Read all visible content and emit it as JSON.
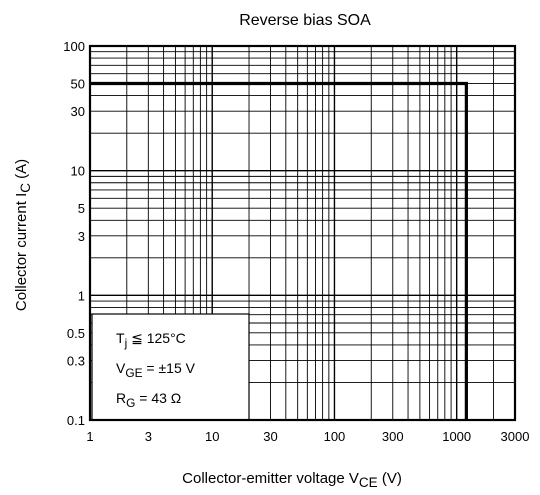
{
  "chart_data": {
    "type": "line",
    "title": "Reverse bias SOA",
    "xlabel": {
      "main": "Collector-emitter voltage",
      "sym": "V",
      "sub": "CE",
      "unit": "(V)"
    },
    "ylabel": {
      "main": "Collector current",
      "sym": "I",
      "sub": "C",
      "unit": "(A)"
    },
    "x_scale": "log",
    "y_scale": "log",
    "xlim": [
      1,
      3000
    ],
    "ylim": [
      0.1,
      100
    ],
    "x_ticks": [
      1,
      3,
      10,
      30,
      100,
      300,
      1000,
      3000
    ],
    "x_tick_labels": [
      "1",
      "3",
      "10",
      "30",
      "100",
      "300",
      "1000",
      "3000"
    ],
    "y_ticks": [
      0.1,
      0.3,
      0.5,
      1,
      3,
      5,
      10,
      30,
      50,
      100
    ],
    "y_tick_labels": [
      "0.1",
      "0.3",
      "0.5",
      "1",
      "3",
      "5",
      "10",
      "30",
      "50",
      "100"
    ],
    "grid": true,
    "series": [
      {
        "points": [
          [
            1,
            50
          ],
          [
            1200,
            50
          ],
          [
            1200,
            0.1
          ]
        ]
      }
    ],
    "conditions": [
      {
        "sym": "T",
        "sub": "j",
        "rest": " ≦ 125°C"
      },
      {
        "sym": "V",
        "sub": "GE",
        "rest": " = ±15 V"
      },
      {
        "sym": "R",
        "sub": "G",
        "rest": " = 43 Ω"
      }
    ]
  }
}
